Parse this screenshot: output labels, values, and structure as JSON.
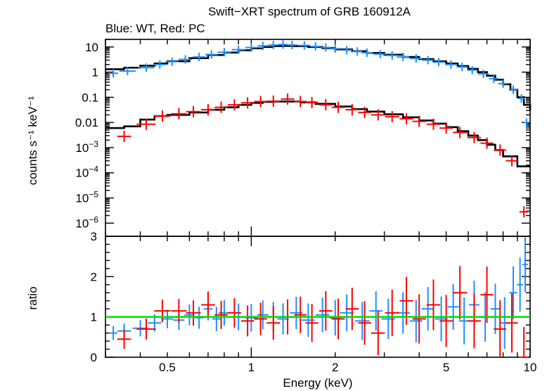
{
  "chart_data": [
    {
      "type": "scatter",
      "title": "Swift−XRT spectrum of GRB 160912A",
      "subtitle": "Blue: WT, Red: PC",
      "xlabel": "",
      "ylabel": "counts s⁻¹ keV⁻¹",
      "xscale": "log",
      "yscale": "log",
      "xlim": [
        0.3,
        10
      ],
      "ylim": [
        3e-07,
        20
      ],
      "x_ticks": [
        0.5,
        1,
        2,
        5,
        10
      ],
      "y_ticks": [
        {
          "value": 10,
          "label": "10"
        },
        {
          "value": 1,
          "label": "1"
        },
        {
          "value": 0.1,
          "label": "0.1"
        },
        {
          "value": 0.01,
          "label": "0.01"
        },
        {
          "value": 0.001,
          "base": "10",
          "exp": "−3"
        },
        {
          "value": 0.0001,
          "base": "10",
          "exp": "−4"
        },
        {
          "value": 1e-05,
          "base": "10",
          "exp": "−5"
        },
        {
          "value": 1e-06,
          "base": "10",
          "exp": "−6"
        }
      ],
      "series": [
        {
          "color": "#1f8fff",
          "points": [
            [
              0.32,
              0.9
            ],
            [
              0.36,
              1.1
            ],
            [
              0.42,
              1.5
            ],
            [
              0.47,
              2.0
            ],
            [
              0.52,
              2.6
            ],
            [
              0.58,
              3.2
            ],
            [
              0.65,
              4.0
            ],
            [
              0.72,
              5.0
            ],
            [
              0.8,
              6.2
            ],
            [
              0.9,
              7.8
            ],
            [
              1.0,
              9.5
            ],
            [
              1.1,
              11.0
            ],
            [
              1.2,
              12.0
            ],
            [
              1.3,
              12.5
            ],
            [
              1.4,
              12.0
            ],
            [
              1.55,
              11.5
            ],
            [
              1.7,
              10.5
            ],
            [
              1.85,
              9.5
            ],
            [
              2.0,
              8.5
            ],
            [
              2.2,
              7.5
            ],
            [
              2.4,
              6.6
            ],
            [
              2.6,
              5.9
            ],
            [
              2.9,
              5.2
            ],
            [
              3.2,
              4.6
            ],
            [
              3.5,
              4.0
            ],
            [
              3.9,
              3.5
            ],
            [
              4.3,
              3.0
            ],
            [
              4.7,
              2.5
            ],
            [
              5.2,
              2.0
            ],
            [
              5.7,
              1.6
            ],
            [
              6.2,
              1.2
            ],
            [
              6.8,
              0.85
            ],
            [
              7.4,
              0.55
            ],
            [
              8.0,
              0.35
            ],
            [
              8.7,
              0.2
            ],
            [
              9.3,
              0.09
            ],
            [
              9.7,
              0.01
            ]
          ]
        },
        {
          "color": "#ff0000",
          "points": [
            [
              0.35,
              0.0028
            ],
            [
              0.42,
              0.0085
            ],
            [
              0.48,
              0.018
            ],
            [
              0.55,
              0.022
            ],
            [
              0.62,
              0.027
            ],
            [
              0.7,
              0.032
            ],
            [
              0.78,
              0.04
            ],
            [
              0.87,
              0.05
            ],
            [
              0.97,
              0.06
            ],
            [
              1.08,
              0.068
            ],
            [
              1.2,
              0.07
            ],
            [
              1.35,
              0.085
            ],
            [
              1.5,
              0.068
            ],
            [
              1.65,
              0.062
            ],
            [
              1.85,
              0.05
            ],
            [
              2.05,
              0.04
            ],
            [
              2.3,
              0.032
            ],
            [
              2.55,
              0.025
            ],
            [
              2.85,
              0.02
            ],
            [
              3.2,
              0.017
            ],
            [
              3.6,
              0.014
            ],
            [
              4.0,
              0.011
            ],
            [
              4.5,
              0.0085
            ],
            [
              5.0,
              0.006
            ],
            [
              5.6,
              0.004
            ],
            [
              6.3,
              0.0025
            ],
            [
              7.0,
              0.0015
            ],
            [
              7.8,
              0.0008
            ],
            [
              8.6,
              0.0003
            ],
            [
              9.5,
              2.8e-06
            ]
          ]
        }
      ],
      "model": {
        "color": "#000000",
        "blue_model": [
          [
            0.3,
            1.3
          ],
          [
            0.35,
            1.5
          ],
          [
            0.4,
            1.8
          ],
          [
            0.45,
            2.2
          ],
          [
            0.5,
            2.7
          ],
          [
            0.6,
            3.6
          ],
          [
            0.7,
            4.8
          ],
          [
            0.8,
            6.0
          ],
          [
            0.9,
            7.4
          ],
          [
            1.0,
            8.8
          ],
          [
            1.1,
            10.0
          ],
          [
            1.2,
            10.8
          ],
          [
            1.3,
            11.0
          ],
          [
            1.4,
            10.8
          ],
          [
            1.6,
            10.0
          ],
          [
            1.8,
            9.0
          ],
          [
            2.0,
            8.0
          ],
          [
            2.3,
            6.8
          ],
          [
            2.6,
            5.8
          ],
          [
            3.0,
            4.9
          ],
          [
            3.5,
            4.0
          ],
          [
            4.0,
            3.3
          ],
          [
            4.5,
            2.7
          ],
          [
            5.0,
            2.2
          ],
          [
            5.5,
            1.75
          ],
          [
            6.0,
            1.35
          ],
          [
            6.5,
            1.0
          ],
          [
            7.0,
            0.72
          ],
          [
            7.5,
            0.5
          ],
          [
            8.0,
            0.33
          ],
          [
            8.5,
            0.2
          ],
          [
            9.0,
            0.1
          ],
          [
            9.5,
            0.05
          ],
          [
            10.0,
            0.03
          ]
        ],
        "red_model": [
          [
            0.3,
            0.006
          ],
          [
            0.35,
            0.007
          ],
          [
            0.4,
            0.013
          ],
          [
            0.45,
            0.018
          ],
          [
            0.5,
            0.02
          ],
          [
            0.6,
            0.025
          ],
          [
            0.7,
            0.032
          ],
          [
            0.8,
            0.04
          ],
          [
            0.9,
            0.05
          ],
          [
            1.0,
            0.06
          ],
          [
            1.1,
            0.066
          ],
          [
            1.2,
            0.068
          ],
          [
            1.3,
            0.068
          ],
          [
            1.5,
            0.063
          ],
          [
            1.7,
            0.055
          ],
          [
            2.0,
            0.043
          ],
          [
            2.3,
            0.034
          ],
          [
            2.6,
            0.027
          ],
          [
            3.0,
            0.021
          ],
          [
            3.5,
            0.016
          ],
          [
            4.0,
            0.012
          ],
          [
            4.5,
            0.009
          ],
          [
            5.0,
            0.0065
          ],
          [
            5.5,
            0.0045
          ],
          [
            6.0,
            0.003
          ],
          [
            6.5,
            0.002
          ],
          [
            7.0,
            0.0013
          ],
          [
            7.5,
            0.0008
          ],
          [
            8.0,
            0.00045
          ],
          [
            9.0,
            0.00018
          ],
          [
            10.0,
            0.00018
          ]
        ]
      }
    },
    {
      "type": "scatter",
      "xlabel": "Energy (keV)",
      "ylabel": "ratio",
      "xscale": "log",
      "xlim": [
        0.3,
        10
      ],
      "ylim": [
        0,
        3
      ],
      "x_ticks": [
        {
          "value": 0.5,
          "label": "0.5"
        },
        {
          "value": 1,
          "label": "1"
        },
        {
          "value": 2,
          "label": "2"
        },
        {
          "value": 5,
          "label": "5"
        },
        {
          "value": 10,
          "label": "10"
        }
      ],
      "y_ticks": [
        {
          "value": 0,
          "label": "0"
        },
        {
          "value": 1,
          "label": "1"
        },
        {
          "value": 2,
          "label": "2"
        },
        {
          "value": 3,
          "label": "3"
        }
      ],
      "reference_line": {
        "value": 1,
        "color": "#00dd00"
      },
      "series": [
        {
          "color": "#1f8fff",
          "points": [
            [
              0.32,
              0.6
            ],
            [
              0.35,
              0.65
            ],
            [
              0.4,
              0.72
            ],
            [
              0.45,
              0.85
            ],
            [
              0.5,
              0.95
            ],
            [
              0.55,
              0.92
            ],
            [
              0.6,
              1.05
            ],
            [
              0.65,
              0.98
            ],
            [
              0.7,
              1.2
            ],
            [
              0.75,
              0.95
            ],
            [
              0.8,
              1.1
            ],
            [
              0.9,
              1.0
            ],
            [
              1.0,
              0.98
            ],
            [
              1.1,
              1.05
            ],
            [
              1.2,
              1.0
            ],
            [
              1.3,
              0.95
            ],
            [
              1.45,
              1.1
            ],
            [
              1.6,
              0.92
            ],
            [
              1.8,
              1.05
            ],
            [
              2.0,
              0.98
            ],
            [
              2.2,
              1.1
            ],
            [
              2.5,
              0.9
            ],
            [
              2.8,
              1.15
            ],
            [
              3.1,
              0.95
            ],
            [
              3.5,
              1.1
            ],
            [
              3.9,
              0.9
            ],
            [
              4.3,
              1.2
            ],
            [
              4.8,
              0.95
            ],
            [
              5.3,
              1.25
            ],
            [
              5.8,
              0.9
            ],
            [
              6.3,
              1.3
            ],
            [
              6.9,
              1.0
            ],
            [
              7.5,
              1.2
            ],
            [
              8.1,
              0.85
            ],
            [
              8.7,
              1.6
            ],
            [
              9.2,
              1.8
            ],
            [
              9.6,
              2.3
            ]
          ]
        },
        {
          "color": "#ff0000",
          "points": [
            [
              0.35,
              0.45
            ],
            [
              0.42,
              0.7
            ],
            [
              0.48,
              1.15
            ],
            [
              0.55,
              1.15
            ],
            [
              0.62,
              1.1
            ],
            [
              0.7,
              1.3
            ],
            [
              0.78,
              1.05
            ],
            [
              0.87,
              1.1
            ],
            [
              0.97,
              0.9
            ],
            [
              1.08,
              0.95
            ],
            [
              1.2,
              0.85
            ],
            [
              1.35,
              1.0
            ],
            [
              1.5,
              1.05
            ],
            [
              1.65,
              0.85
            ],
            [
              1.85,
              1.15
            ],
            [
              2.05,
              0.95
            ],
            [
              2.3,
              1.2
            ],
            [
              2.55,
              0.85
            ],
            [
              2.85,
              0.6
            ],
            [
              3.2,
              1.1
            ],
            [
              3.6,
              1.4
            ],
            [
              4.0,
              0.95
            ],
            [
              4.5,
              1.3
            ],
            [
              5.0,
              0.9
            ],
            [
              5.6,
              1.6
            ],
            [
              6.3,
              0.9
            ],
            [
              7.0,
              1.55
            ],
            [
              7.8,
              0.7
            ],
            [
              8.6,
              0.85
            ],
            [
              9.5,
              0.0
            ]
          ]
        }
      ]
    }
  ]
}
